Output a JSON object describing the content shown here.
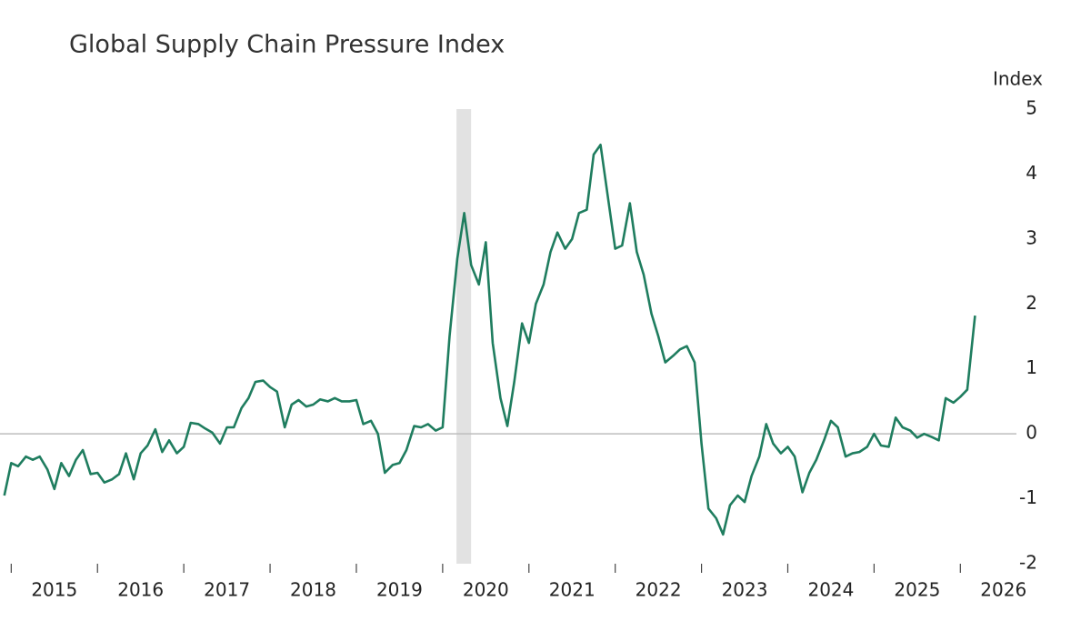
{
  "chart_data": {
    "type": "line",
    "title": "Global Supply Chain Pressure Index",
    "y_axis_label": "Index",
    "x": [
      2014.92,
      2015,
      2015.08,
      2015.17,
      2015.25,
      2015.33,
      2015.42,
      2015.5,
      2015.58,
      2015.67,
      2015.75,
      2015.83,
      2015.92,
      2016,
      2016.08,
      2016.17,
      2016.25,
      2016.33,
      2016.42,
      2016.5,
      2016.58,
      2016.67,
      2016.75,
      2016.83,
      2016.92,
      2017,
      2017.08,
      2017.17,
      2017.25,
      2017.33,
      2017.42,
      2017.5,
      2017.58,
      2017.67,
      2017.75,
      2017.83,
      2017.92,
      2018,
      2018.08,
      2018.17,
      2018.25,
      2018.33,
      2018.42,
      2018.5,
      2018.58,
      2018.67,
      2018.75,
      2018.83,
      2018.92,
      2019,
      2019.08,
      2019.17,
      2019.25,
      2019.33,
      2019.42,
      2019.5,
      2019.58,
      2019.67,
      2019.75,
      2019.83,
      2019.92,
      2020,
      2020.08,
      2020.17,
      2020.25,
      2020.33,
      2020.42,
      2020.5,
      2020.58,
      2020.67,
      2020.75,
      2020.83,
      2020.92,
      2021,
      2021.08,
      2021.17,
      2021.25,
      2021.33,
      2021.42,
      2021.5,
      2021.58,
      2021.67,
      2021.75,
      2021.83,
      2021.92,
      2022,
      2022.08,
      2022.17,
      2022.25,
      2022.33,
      2022.42,
      2022.5,
      2022.58,
      2022.67,
      2022.75,
      2022.83,
      2022.92,
      2023,
      2023.08,
      2023.17,
      2023.25,
      2023.33,
      2023.42,
      2023.5,
      2023.58,
      2023.67,
      2023.75,
      2023.83,
      2023.92,
      2024,
      2024.08,
      2024.17,
      2024.25,
      2024.33,
      2024.42,
      2024.5,
      2024.58,
      2024.67,
      2024.75,
      2024.83,
      2024.92,
      2025,
      2025.08,
      2025.17,
      2025.25,
      2025.33,
      2025.42,
      2025.5,
      2025.58,
      2025.67,
      2025.75,
      2025.83,
      2025.92,
      2026,
      2026.08,
      2026.17
    ],
    "series": [
      {
        "name": "Global Supply Chain Pressure Index",
        "color": "#1f7d5f",
        "values": [
          -0.95,
          -0.45,
          -0.5,
          -0.35,
          -0.4,
          -0.35,
          -0.55,
          -0.85,
          -0.45,
          -0.65,
          -0.4,
          -0.25,
          -0.62,
          -0.6,
          -0.75,
          -0.7,
          -0.62,
          -0.3,
          -0.7,
          -0.3,
          -0.18,
          0.07,
          -0.28,
          -0.1,
          -0.3,
          -0.2,
          0.17,
          0.15,
          0.08,
          0.02,
          -0.15,
          0.1,
          0.1,
          0.4,
          0.55,
          0.8,
          0.82,
          0.72,
          0.65,
          0.1,
          0.45,
          0.52,
          0.42,
          0.45,
          0.53,
          0.5,
          0.55,
          0.5,
          0.5,
          0.52,
          0.15,
          0.2,
          0.0,
          -0.6,
          -0.48,
          -0.45,
          -0.25,
          0.12,
          0.1,
          0.15,
          0.05,
          0.1,
          1.5,
          2.7,
          3.4,
          2.6,
          2.3,
          2.95,
          1.4,
          0.55,
          0.12,
          0.8,
          1.7,
          1.4,
          2.0,
          2.3,
          2.8,
          3.1,
          2.85,
          3.0,
          3.4,
          3.45,
          4.3,
          4.45,
          3.6,
          2.85,
          2.9,
          3.55,
          2.8,
          2.45,
          1.85,
          1.5,
          1.1,
          1.2,
          1.3,
          1.35,
          1.1,
          -0.15,
          -1.15,
          -1.3,
          -1.55,
          -1.1,
          -0.95,
          -1.05,
          -0.65,
          -0.35,
          0.15,
          -0.15,
          -0.3,
          -0.2,
          -0.35,
          -0.9,
          -0.6,
          -0.4,
          -0.1,
          0.2,
          0.1,
          -0.35,
          -0.3,
          -0.28,
          -0.2,
          0.0,
          -0.18,
          -0.2,
          0.25,
          0.1,
          0.05,
          -0.06,
          0.0,
          -0.05,
          -0.1,
          0.55,
          0.48,
          0.57,
          0.68,
          1.82
        ]
      }
    ],
    "shaded_period": {
      "x": [
        2020.16,
        2020.33
      ],
      "color": "#e2e2e2"
    },
    "xlim": [
      2014.87,
      2026.65
    ],
    "xticks": [
      {
        "value": 2015,
        "label": "2015"
      },
      {
        "value": 2016,
        "label": "2016"
      },
      {
        "value": 2017,
        "label": "2017"
      },
      {
        "value": 2018,
        "label": "2018"
      },
      {
        "value": 2019,
        "label": "2019"
      },
      {
        "value": 2020,
        "label": "2020"
      },
      {
        "value": 2021,
        "label": "2021"
      },
      {
        "value": 2022,
        "label": "2022"
      },
      {
        "value": 2023,
        "label": "2023"
      },
      {
        "value": 2024,
        "label": "2024"
      },
      {
        "value": 2025,
        "label": "2025"
      },
      {
        "value": 2026,
        "label": "2026"
      }
    ],
    "ylim": [
      -2,
      5
    ],
    "yticks": [
      -2,
      -1,
      0,
      1,
      2,
      3,
      4,
      5
    ]
  }
}
